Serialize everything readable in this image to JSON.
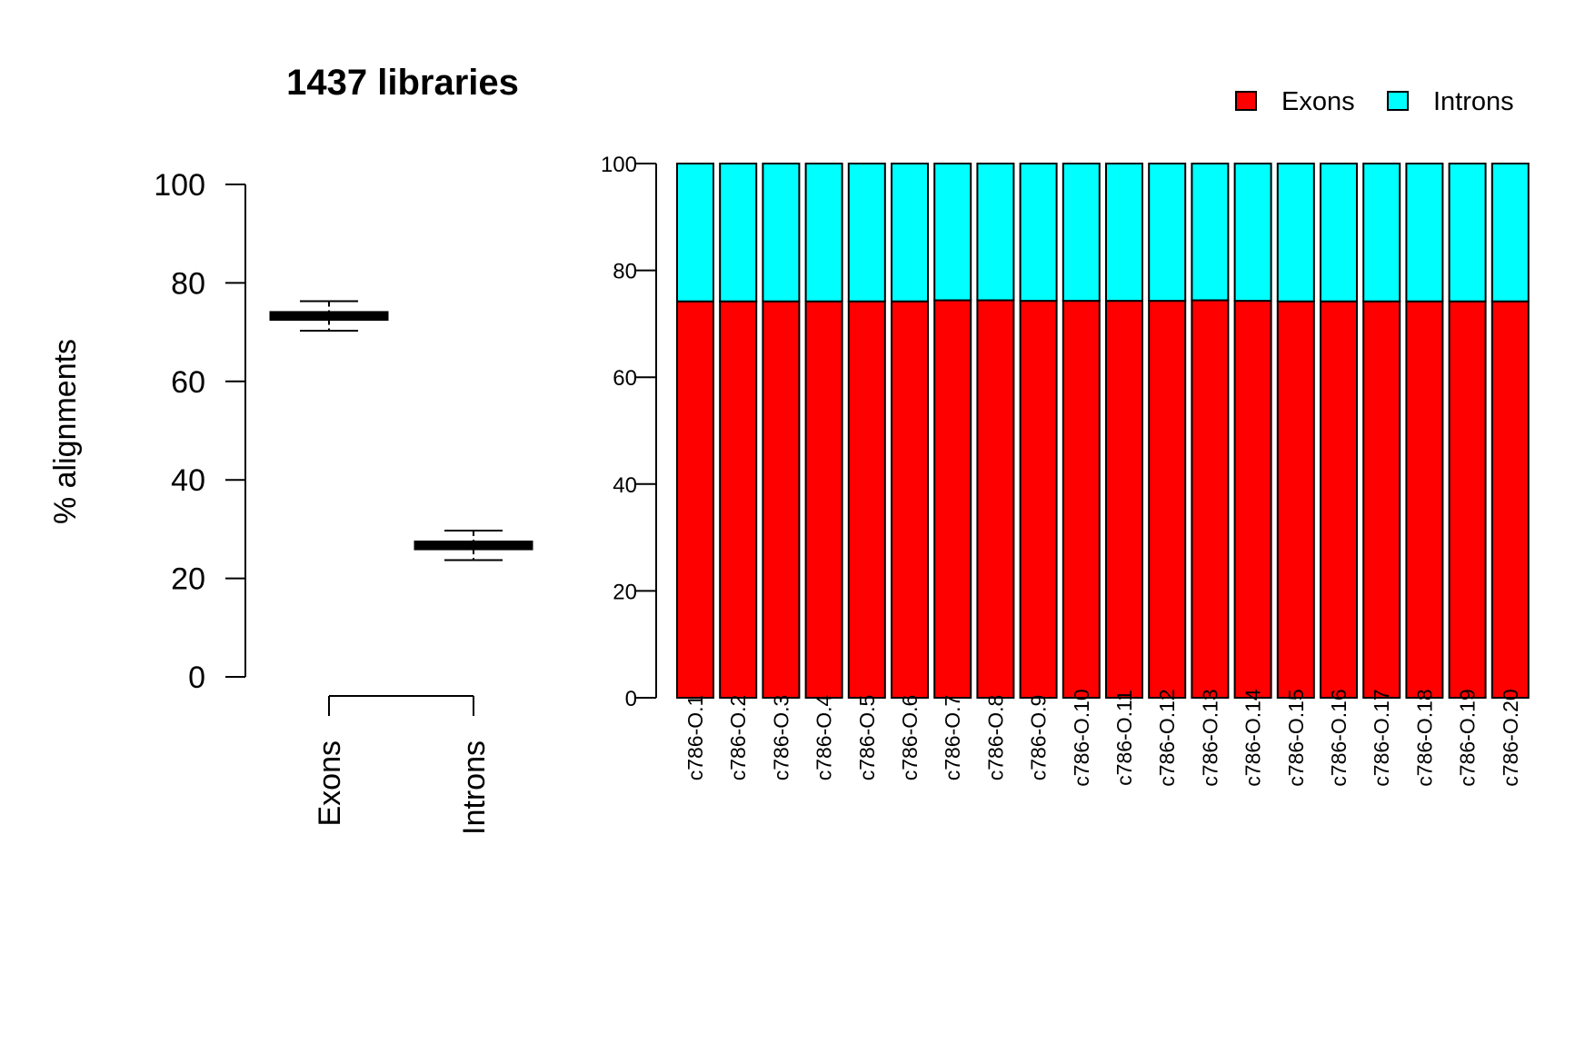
{
  "chart_data": [
    {
      "type": "box",
      "title": "1437 libraries",
      "ylabel": "% alignments",
      "ylim": [
        0,
        100
      ],
      "yticks": [
        0,
        20,
        40,
        60,
        80,
        100
      ],
      "categories": [
        "Exons",
        "Introns"
      ],
      "boxes": [
        {
          "name": "Exons",
          "whisker_low": 70.3,
          "q1": 72.6,
          "median": 73.4,
          "q3": 74.0,
          "whisker_high": 76.3,
          "fill": "#ff0000"
        },
        {
          "name": "Introns",
          "whisker_low": 23.7,
          "q1": 26.0,
          "median": 26.6,
          "q3": 27.4,
          "whisker_high": 29.7,
          "fill": "#00ffff"
        }
      ]
    },
    {
      "type": "bar",
      "stacked": true,
      "ylim": [
        0,
        100
      ],
      "yticks": [
        0,
        20,
        40,
        60,
        80,
        100
      ],
      "legend": {
        "position": "top-right",
        "entries": [
          "Exons",
          "Introns"
        ]
      },
      "categories": [
        "c786-O.1",
        "c786-O.2",
        "c786-O.3",
        "c786-O.4",
        "c786-O.5",
        "c786-O.6",
        "c786-O.7",
        "c786-O.8",
        "c786-O.9",
        "c786-O.10",
        "c786-O.11",
        "c786-O.12",
        "c786-O.13",
        "c786-O.14",
        "c786-O.15",
        "c786-O.16",
        "c786-O.17",
        "c786-O.18",
        "c786-O.19",
        "c786-O.20"
      ],
      "series": [
        {
          "name": "Exons",
          "color": "#ff0000",
          "values": [
            74.2,
            74.2,
            74.2,
            74.2,
            74.2,
            74.2,
            74.4,
            74.4,
            74.3,
            74.3,
            74.3,
            74.3,
            74.4,
            74.3,
            74.2,
            74.2,
            74.2,
            74.2,
            74.2,
            74.2
          ]
        },
        {
          "name": "Introns",
          "color": "#00ffff",
          "values": [
            25.8,
            25.8,
            25.8,
            25.8,
            25.8,
            25.8,
            25.6,
            25.6,
            25.7,
            25.7,
            25.7,
            25.7,
            25.6,
            25.7,
            25.8,
            25.8,
            25.8,
            25.8,
            25.8,
            25.8
          ]
        }
      ]
    }
  ]
}
